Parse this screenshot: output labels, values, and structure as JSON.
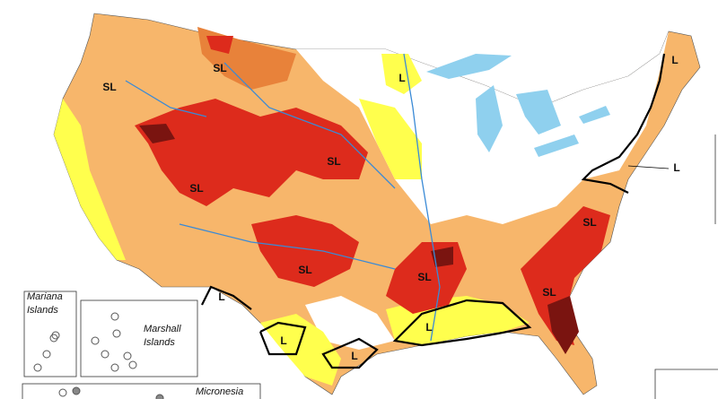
{
  "map_labels": [
    "SL",
    "SL",
    "L",
    "SL",
    "SL",
    "SL",
    "SL",
    "SL",
    "SL",
    "L",
    "L",
    "L",
    "L",
    "L",
    "L"
  ],
  "insets": [
    {
      "name": [
        "Mariana",
        "Islands"
      ]
    },
    {
      "name": [
        "Marshall",
        "Islands"
      ]
    },
    {
      "name": [
        "Micronesia"
      ]
    }
  ]
}
